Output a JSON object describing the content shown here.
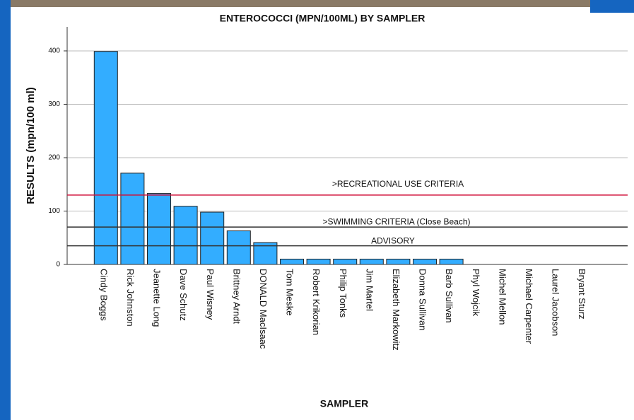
{
  "chart_data": {
    "type": "bar",
    "title": "ENTEROCOCCI (MPN/100ML) BY SAMPLER",
    "x_label": "SAMPLER",
    "y_label": "RESULTS (mpn/100 ml)",
    "categories": [
      "Cindy Boggs",
      "Rick Johnston",
      "Jeanette Long",
      "Dave Schutz",
      "Paul Wisney",
      "Brittney Arndt",
      "DONALD MacIsaac",
      "Tom Meske",
      "Robert Krikorian",
      "Philip Tonks",
      "Jim Martel",
      "Elizabeth Markowitz",
      "Donna Sullivan",
      "Barb Sullivan",
      "Phyl Wojcik",
      "Michel Mellon",
      "Michael Carpenter",
      "Laurel Jacobson",
      "Bryant Sturz"
    ],
    "values": [
      399,
      171,
      133,
      109,
      98,
      63,
      41,
      10,
      10,
      10,
      10,
      10,
      10,
      10,
      0,
      0,
      0,
      0,
      0
    ],
    "color": "#33adff",
    "ylim": [
      0,
      445
    ],
    "yticks": [
      0,
      100,
      200,
      300,
      400
    ],
    "grid": true,
    "reference_lines": [
      {
        "label": ">RECREATIONAL USE CRITERIA",
        "value": 130,
        "color": "#d0103a"
      },
      {
        "label": ">SWIMMING CRITERIA (Close Beach)",
        "value": 70,
        "color": "#333333"
      },
      {
        "label": "ADVISORY",
        "value": 35,
        "color": "#333333"
      }
    ]
  }
}
